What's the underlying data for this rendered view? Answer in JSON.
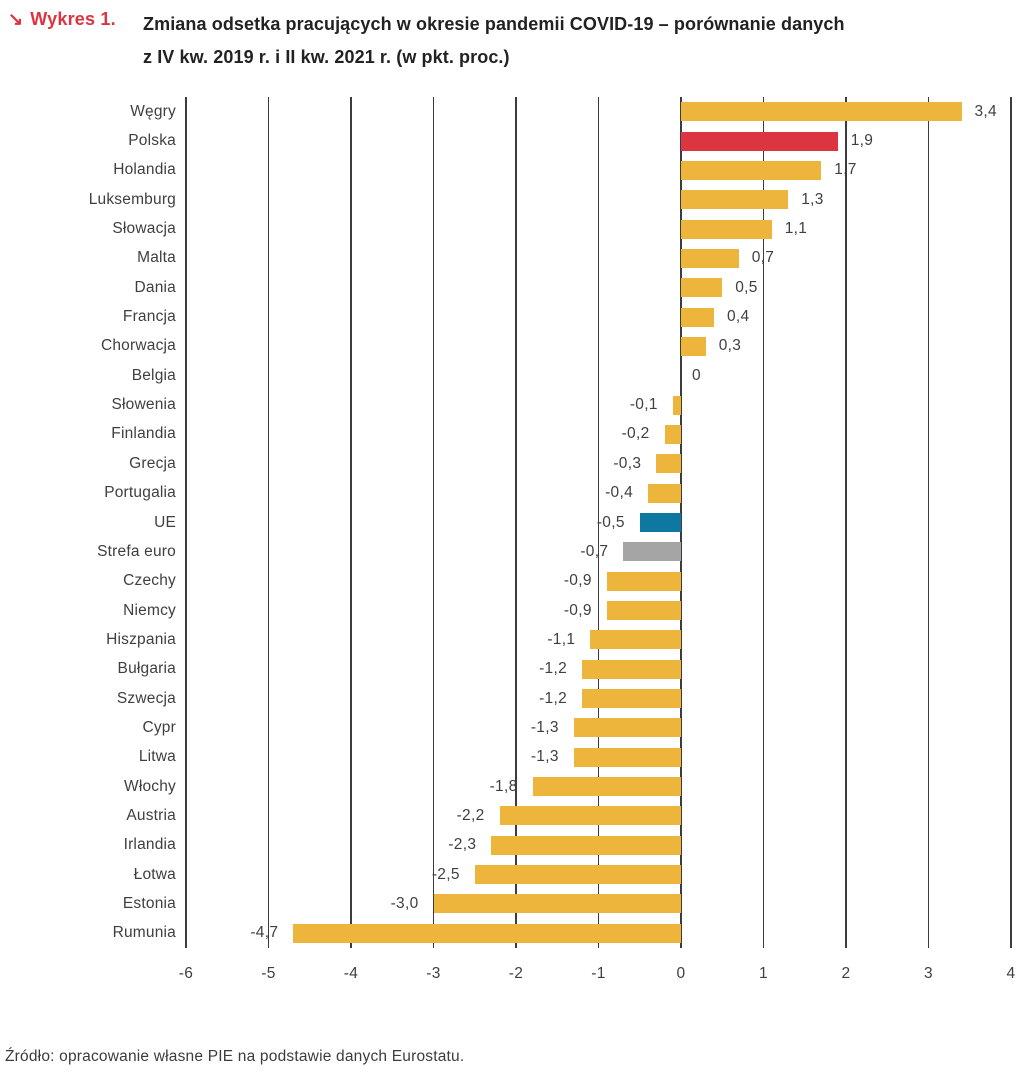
{
  "header": {
    "kicker_arrow": "↘",
    "kicker_label": "Wykres 1.",
    "title_lines": [
      "Zmiana odsetka pracujących w okresie pandemii COVID-19 – porównanie danych",
      "z IV kw. 2019 r. i II kw. 2021 r. (w pkt. proc.)"
    ]
  },
  "footer": {
    "source": "Źródło: opracowanie własne PIE na podstawie danych Eurostatu."
  },
  "colors": {
    "yellow": "#EEB53C",
    "red": "#DB3542",
    "blue": "#0F78A0",
    "gray": "#A5A5A5",
    "gridline": "#3C3C3C",
    "text": "#3F3F3F",
    "title_text": "#222222"
  },
  "chart_data": {
    "type": "bar",
    "orientation": "horizontal",
    "title": "Zmiana odsetka pracujących w okresie pandemii COVID-19 – porównanie danych z IV kw. 2019 r. i II kw. 2021 r. (w pkt. proc.)",
    "unit": "pkt. proc.",
    "grid": "vertical-only",
    "xlim": [
      -6,
      4
    ],
    "x_ticks": [
      "-6",
      "-5",
      "-4",
      "-3",
      "-2",
      "-1",
      "0",
      "1",
      "2",
      "3",
      "4"
    ],
    "categories": [
      "Węgry",
      "Polska",
      "Holandia",
      "Luksemburg",
      "Słowacja",
      "Malta",
      "Dania",
      "Francja",
      "Chorwacja",
      "Belgia",
      "Słowenia",
      "Finlandia",
      "Grecja",
      "Portugalia",
      "UE",
      "Strefa euro",
      "Czechy",
      "Niemcy",
      "Hiszpania",
      "Bułgaria",
      "Szwecja",
      "Cypr",
      "Litwa",
      "Włochy",
      "Austria",
      "Irlandia",
      "Łotwa",
      "Estonia",
      "Rumunia"
    ],
    "values": [
      3.4,
      1.9,
      1.7,
      1.3,
      1.1,
      0.7,
      0.5,
      0.4,
      0.3,
      0,
      -0.1,
      -0.2,
      -0.3,
      -0.4,
      -0.5,
      -0.7,
      -0.9,
      -0.9,
      -1.1,
      -1.2,
      -1.2,
      -1.3,
      -1.3,
      -1.8,
      -2.2,
      -2.3,
      -2.5,
      -3.0,
      -4.7
    ],
    "value_labels": [
      "3,4",
      "1,9",
      "1,7",
      "1,3",
      "1,1",
      "0,7",
      "0,5",
      "0,4",
      "0,3",
      "0",
      "-0,1",
      "-0,2",
      "-0,3",
      "-0,4",
      "-0,5",
      "-0,7",
      "-0,9",
      "-0,9",
      "-1,1",
      "-1,2",
      "-1,2",
      "-1,3",
      "-1,3",
      "-1,8",
      "-2,2",
      "-2,3",
      "-2,5",
      "-3,0",
      "-4,7"
    ],
    "bar_color_keys": [
      "yellow",
      "red",
      "yellow",
      "yellow",
      "yellow",
      "yellow",
      "yellow",
      "yellow",
      "yellow",
      "yellow",
      "yellow",
      "yellow",
      "yellow",
      "yellow",
      "blue",
      "gray",
      "yellow",
      "yellow",
      "yellow",
      "yellow",
      "yellow",
      "yellow",
      "yellow",
      "yellow",
      "yellow",
      "yellow",
      "yellow",
      "yellow",
      "yellow"
    ]
  }
}
